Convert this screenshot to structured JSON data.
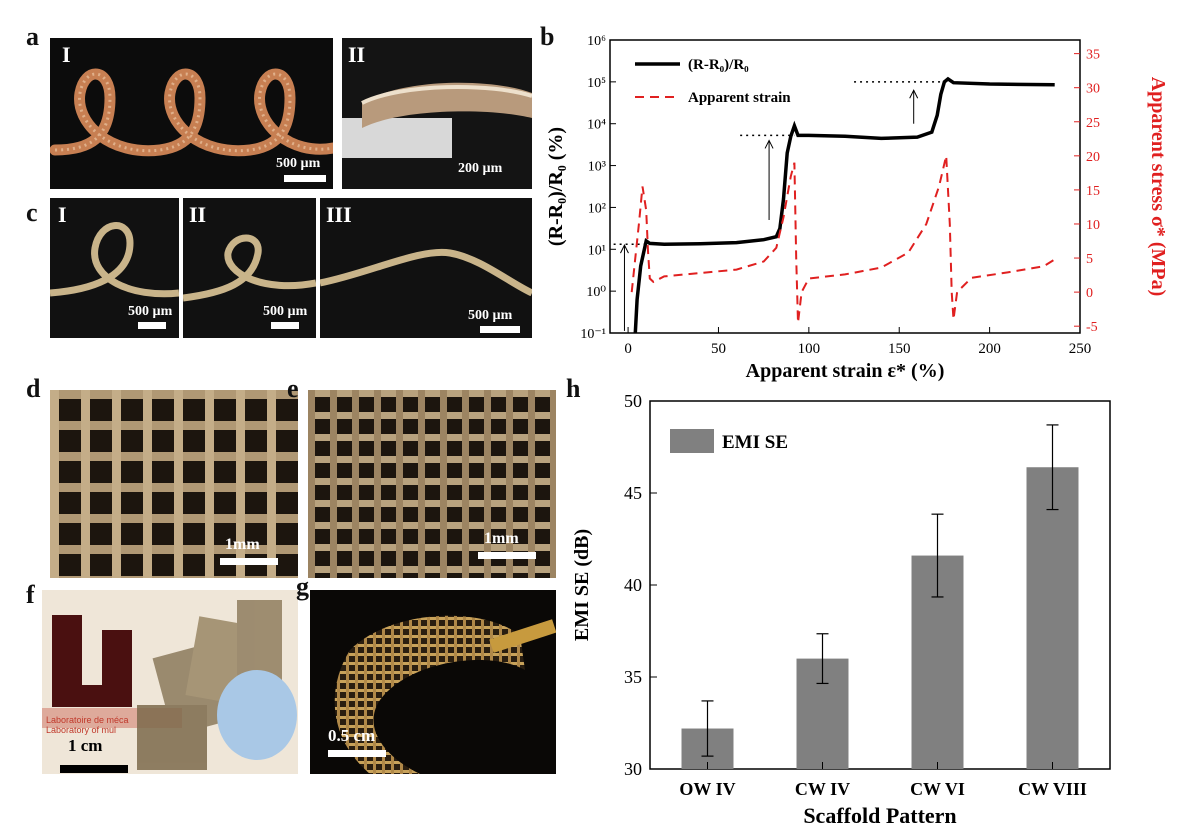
{
  "panels": {
    "a": {
      "letter": "a",
      "sub": [
        "I",
        "II"
      ],
      "scale": [
        "500 µm",
        "200 µm"
      ]
    },
    "b": {
      "letter": "b"
    },
    "c": {
      "letter": "c",
      "sub": [
        "I",
        "II",
        "III"
      ],
      "scale": [
        "500 µm",
        "500 µm",
        "500 µm"
      ]
    },
    "d": {
      "letter": "d",
      "scale": "1mm"
    },
    "e": {
      "letter": "e",
      "scale": "1mm"
    },
    "f": {
      "letter": "f",
      "scale": "1 cm",
      "sign_line1": "Laboratoire de méca",
      "sign_line2": "Laboratory of mul"
    },
    "g": {
      "letter": "g",
      "scale": "0.5 cm"
    },
    "h": {
      "letter": "h"
    }
  },
  "chart_data": [
    {
      "panel": "b",
      "type": "line",
      "xlabel": "Apparent strain ε* (%)",
      "ylabel_left": "(R-R₀)/R₀ (%)",
      "ylabel_right": "Apparent stress σ* (MPa)",
      "xlim": [
        -10,
        250
      ],
      "xticks": [
        "0",
        "50",
        "100",
        "150",
        "200",
        "250"
      ],
      "ylim_left_log": [
        -1,
        6
      ],
      "yticks_left": [
        "10⁻¹",
        "10⁰",
        "10¹",
        "10²",
        "10³",
        "10⁴",
        "10⁵",
        "10⁶"
      ],
      "ylim_right": [
        -6,
        37
      ],
      "yticks_right": [
        "-5",
        "0",
        "5",
        "10",
        "15",
        "20",
        "25",
        "30",
        "35"
      ],
      "legend": [
        "(R-R₀)/R₀",
        "Apparent strain"
      ],
      "legend_position": "top-left",
      "series": [
        {
          "name": "(R-R₀)/R₀",
          "axis": "left-log",
          "color": "#000000",
          "style": "solid",
          "points": [
            [
              4,
              -1
            ],
            [
              5,
              -0.2
            ],
            [
              7,
              0.6
            ],
            [
              10,
              1.2
            ],
            [
              12,
              1.14
            ],
            [
              20,
              1.12
            ],
            [
              40,
              1.13
            ],
            [
              60,
              1.16
            ],
            [
              75,
              1.23
            ],
            [
              82,
              1.3
            ],
            [
              84,
              1.5
            ],
            [
              86,
              2.2
            ],
            [
              88,
              3.3
            ],
            [
              90,
              3.7
            ],
            [
              92,
              3.95
            ],
            [
              94,
              3.72
            ],
            [
              100,
              3.72
            ],
            [
              120,
              3.7
            ],
            [
              140,
              3.65
            ],
            [
              160,
              3.68
            ],
            [
              168,
              3.8
            ],
            [
              171,
              4.2
            ],
            [
              173,
              4.7
            ],
            [
              175,
              5.0
            ],
            [
              177,
              5.07
            ],
            [
              180,
              4.98
            ],
            [
              200,
              4.95
            ],
            [
              236,
              4.93
            ]
          ]
        },
        {
          "name": "Apparent strain",
          "axis": "right",
          "color": "#e02020",
          "style": "dashed",
          "points": [
            [
              2,
              0
            ],
            [
              4,
              5
            ],
            [
              6,
              10
            ],
            [
              8,
              15.5
            ],
            [
              10,
              12
            ],
            [
              11,
              6
            ],
            [
              12,
              2
            ],
            [
              14,
              1.5
            ],
            [
              20,
              2.3
            ],
            [
              40,
              2.8
            ],
            [
              60,
              3.3
            ],
            [
              75,
              4.5
            ],
            [
              82,
              6.5
            ],
            [
              86,
              11
            ],
            [
              90,
              17
            ],
            [
              92,
              19
            ],
            [
              93,
              5
            ],
            [
              94,
              -4.5
            ],
            [
              96,
              0
            ],
            [
              100,
              2
            ],
            [
              120,
              2.6
            ],
            [
              140,
              3.6
            ],
            [
              155,
              5.8
            ],
            [
              165,
              10
            ],
            [
              172,
              15.5
            ],
            [
              176,
              20
            ],
            [
              178,
              10
            ],
            [
              179,
              0
            ],
            [
              180,
              -4
            ],
            [
              182,
              0
            ],
            [
              190,
              2.1
            ],
            [
              210,
              2.9
            ],
            [
              230,
              3.8
            ],
            [
              236,
              4.8
            ]
          ]
        }
      ],
      "annotations": [
        "dotted level line at ~10¹ with up arrow at x≈-2",
        "dotted level line at ~5×10³ with up arrow at x≈78",
        "dotted level line at ~10⁵ with up arrow at x≈158"
      ]
    },
    {
      "panel": "h",
      "type": "bar",
      "categories": [
        "OW IV",
        "CW IV",
        "CW VI",
        "CW VIII"
      ],
      "values": [
        32.2,
        36.0,
        41.6,
        46.4
      ],
      "errors": [
        1.5,
        1.35,
        2.25,
        2.3
      ],
      "ylim": [
        30,
        50
      ],
      "yticks": [
        "30",
        "35",
        "40",
        "45",
        "50"
      ],
      "xlabel": "Scaffold Pattern",
      "ylabel": "EMI SE (dB)",
      "legend": [
        "EMI SE"
      ],
      "legend_position": "top-left",
      "bar_color": "#808080"
    }
  ]
}
